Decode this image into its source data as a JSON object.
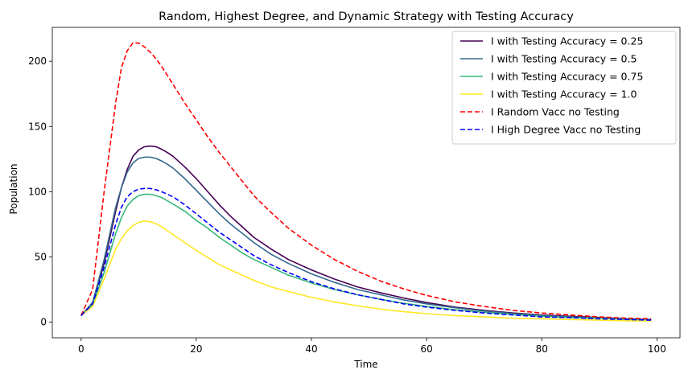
{
  "chart_data": {
    "type": "line",
    "title": "Random, Highest Degree, and Dynamic Strategy with Testing Accuracy",
    "xlabel": "Time",
    "ylabel": "Population",
    "xlim": [
      -5,
      104
    ],
    "ylim": [
      -12,
      226
    ],
    "x_ticks": [
      0,
      20,
      40,
      60,
      80,
      100
    ],
    "y_ticks": [
      0,
      50,
      100,
      150,
      200
    ],
    "grid": false,
    "legend_position": "top-right",
    "x": [
      0,
      2,
      4,
      6,
      7,
      8,
      9,
      10,
      11,
      12,
      13,
      14,
      15,
      16,
      18,
      20,
      22,
      24,
      26,
      28,
      30,
      33,
      36,
      40,
      44,
      48,
      52,
      56,
      60,
      65,
      70,
      75,
      80,
      85,
      90,
      95,
      99
    ],
    "series": [
      {
        "name": "I with Testing Accuracy = 0.25",
        "color": "#440154",
        "dash": "solid",
        "values": [
          5,
          15,
          45,
          85,
          103,
          117,
          127,
          132,
          134.5,
          135,
          134.5,
          132.5,
          130,
          127,
          119,
          110,
          100,
          90,
          81,
          73,
          65,
          56,
          48,
          40,
          33,
          27,
          22.5,
          18.5,
          15,
          11.5,
          9,
          7,
          5.5,
          4.5,
          3.5,
          2.5,
          2
        ]
      },
      {
        "name": "I with Testing Accuracy = 0.5",
        "color": "#31688e",
        "dash": "solid",
        "values": [
          5,
          15,
          48,
          88,
          103,
          115,
          122,
          125.5,
          126.5,
          126.5,
          125.5,
          123.5,
          121,
          118,
          110,
          101,
          92,
          83,
          75,
          68,
          61,
          52,
          45,
          37,
          30.5,
          25,
          21,
          17,
          14,
          11,
          8.5,
          6.5,
          5,
          4,
          3,
          2.5,
          2
        ]
      },
      {
        "name": "I with Testing Accuracy = 0.75",
        "color": "#35b779",
        "dash": "solid",
        "values": [
          5,
          13,
          38,
          68,
          80,
          89,
          94,
          97,
          98,
          98,
          97,
          95.5,
          93,
          90.5,
          85,
          78,
          72,
          65,
          59,
          53,
          48,
          42,
          36,
          30,
          25,
          21,
          17.5,
          14.5,
          12,
          9.5,
          7.5,
          6,
          4.5,
          3.5,
          3,
          2,
          1.5
        ]
      },
      {
        "name": "I with Testing Accuracy = 1.0",
        "color": "#fde725",
        "dash": "solid",
        "values": [
          5,
          12,
          33,
          56,
          64,
          70,
          74,
          76.5,
          77.5,
          77,
          75.5,
          73,
          70,
          67,
          61,
          55,
          49.5,
          44,
          40,
          36,
          32,
          27,
          23.5,
          19,
          15.5,
          12.5,
          10,
          8,
          6.5,
          5,
          4,
          3,
          2.5,
          2,
          1.5,
          1,
          1
        ]
      },
      {
        "name": "I Random Vacc no Testing",
        "color": "#ff0000",
        "dash": "dashed",
        "values": [
          5,
          25,
          100,
          168,
          195,
          208,
          214,
          214,
          211,
          207,
          202,
          196,
          189,
          182,
          168,
          155,
          142,
          130,
          119,
          108,
          97,
          84,
          72,
          59,
          48,
          39,
          31.5,
          25.5,
          20.5,
          15.5,
          12,
          9,
          7,
          5.5,
          4,
          3,
          2.5
        ]
      },
      {
        "name": "I High Degree Vacc no Testing",
        "color": "#0000ff",
        "dash": "dashed",
        "values": [
          5,
          14,
          42,
          75,
          88,
          96,
          100,
          102,
          102.5,
          102.5,
          101.5,
          100,
          98,
          96,
          90,
          83,
          76,
          69,
          63,
          57,
          51,
          44,
          38,
          31,
          25.5,
          21,
          17.5,
          14,
          11.5,
          9,
          7,
          5.5,
          4,
          3.5,
          2.5,
          2,
          1.5
        ]
      }
    ]
  }
}
